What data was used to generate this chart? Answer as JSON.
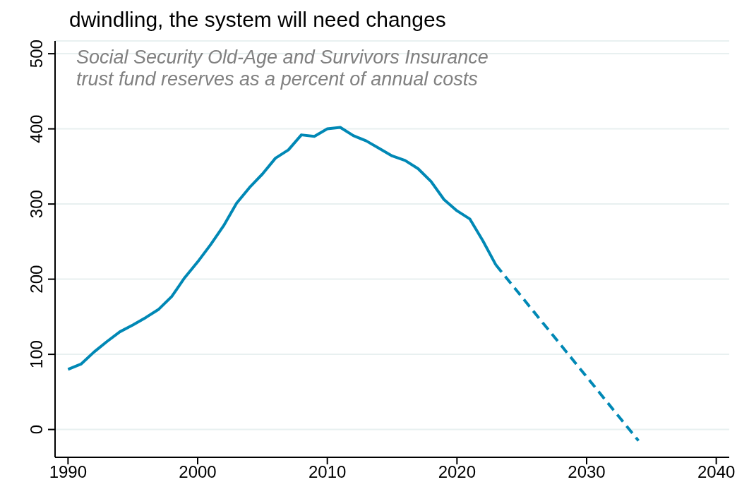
{
  "chart_data": {
    "type": "line",
    "title": "dwindling, the system will need changes",
    "subtitle": "Social Security Old-Age and Survivors Insurance\ntrust fund reserves as a percent of annual costs",
    "xlim": [
      1989,
      2041
    ],
    "xticks": [
      1990,
      2000,
      2010,
      2020,
      2030,
      2040
    ],
    "ylim": [
      -37,
      517
    ],
    "yticks": [
      0,
      100,
      200,
      300,
      400,
      500
    ],
    "grid": "y",
    "series": [
      {
        "color": "#0088b5",
        "line_style": "solid",
        "x": [
          1990,
          1991,
          1992,
          1993,
          1994,
          1995,
          1996,
          1997,
          1998,
          1999,
          2000,
          2001,
          2002,
          2003,
          2004,
          2005,
          2006,
          2007,
          2008,
          2009,
          2010,
          2011,
          2012,
          2013,
          2014,
          2015,
          2016,
          2017,
          2018,
          2019,
          2020,
          2021,
          2022,
          2023
        ],
        "values": [
          80,
          87,
          103,
          117,
          130,
          139,
          149,
          160,
          177,
          202,
          223,
          246,
          271,
          301,
          322,
          340,
          361,
          372,
          392,
          390,
          400,
          402,
          391,
          384,
          374,
          364,
          358,
          347,
          330,
          306,
          291,
          280,
          251,
          219
        ]
      },
      {
        "color": "#0088b5",
        "line_style": "dashed",
        "x": [
          2023,
          2034
        ],
        "values": [
          219,
          -15
        ]
      }
    ]
  }
}
